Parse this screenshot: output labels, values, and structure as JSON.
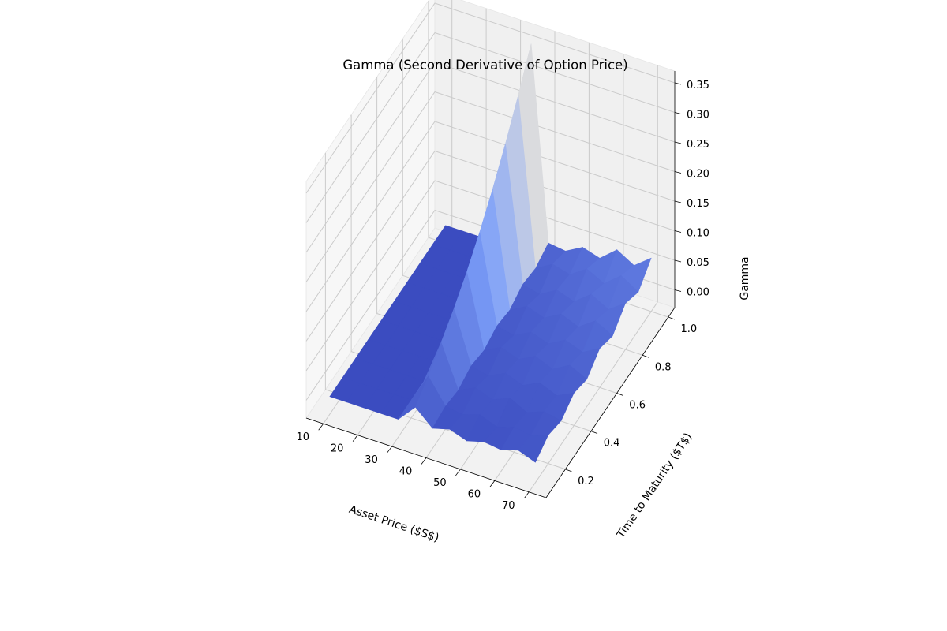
{
  "chart_data": {
    "type": "surface3d",
    "title": "Gamma (Second Derivative of Option Price)",
    "xlabel": "Asset Price ($S$)",
    "ylabel": "Time to Maturity ($T$)",
    "zlabel": "Gamma",
    "xlim": [
      5,
      75
    ],
    "ylim": [
      0.05,
      1.05
    ],
    "zlim": [
      -0.03,
      0.37
    ],
    "xticks": [
      "10",
      "20",
      "30",
      "40",
      "50",
      "60",
      "70"
    ],
    "yticks": [
      "0.2",
      "0.4",
      "0.6",
      "0.8",
      "1.0"
    ],
    "zticks": [
      "0.00",
      "0.05",
      "0.10",
      "0.15",
      "0.20",
      "0.25",
      "0.30",
      "0.35"
    ],
    "colormap": "coolwarm",
    "colors": {
      "low": "#3b4cc0",
      "mid": "#dddddd",
      "high": "#b40426"
    },
    "grid": true,
    "x_grid": [
      10,
      15,
      20,
      25,
      30,
      35,
      40,
      45,
      50,
      55,
      60,
      65,
      70
    ],
    "y_grid": [
      0.1,
      0.2,
      0.3,
      0.4,
      0.5,
      0.6,
      0.7,
      0.8,
      0.9,
      1.0
    ],
    "z": [
      [
        0,
        0,
        0,
        0,
        0,
        0.03,
        0.004,
        0.012,
        0.002,
        0.01,
        0.006,
        0.015,
        0.004
      ],
      [
        0,
        0,
        0,
        0,
        0,
        0.05,
        0.009,
        0.005,
        0.014,
        0.003,
        0.012,
        0.008,
        0.018
      ],
      [
        0,
        0,
        0,
        0,
        0,
        0.075,
        0.004,
        0.018,
        0.007,
        0.02,
        0.005,
        0.016,
        0.01
      ],
      [
        0,
        0,
        0,
        0,
        0,
        0.1,
        0.013,
        0.006,
        0.02,
        0.009,
        0.023,
        0.011,
        0.025
      ],
      [
        0,
        0,
        0,
        0,
        0,
        0.13,
        0.007,
        0.022,
        0.011,
        0.026,
        0.014,
        0.03,
        0.016
      ],
      [
        0,
        0,
        0,
        0,
        0,
        0.165,
        0.016,
        0.01,
        0.025,
        0.015,
        0.031,
        0.02,
        0.036
      ],
      [
        0,
        0,
        0,
        0,
        0,
        0.205,
        0.011,
        0.027,
        0.017,
        0.033,
        0.021,
        0.041,
        0.025
      ],
      [
        0,
        0,
        0,
        0,
        0,
        0.25,
        0.022,
        0.015,
        0.032,
        0.022,
        0.044,
        0.028,
        0.048
      ],
      [
        0,
        0,
        0,
        0,
        0,
        0.3,
        0.017,
        0.034,
        0.026,
        0.045,
        0.03,
        0.053,
        0.035
      ],
      [
        0,
        0,
        0,
        0,
        0,
        0.355,
        0.028,
        0.024,
        0.04,
        0.031,
        0.055,
        0.038,
        0.06
      ]
    ]
  }
}
